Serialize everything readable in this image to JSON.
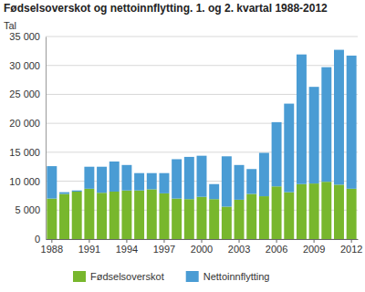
{
  "chart_data": {
    "type": "bar",
    "stacked": true,
    "grid": true,
    "legend": "bottom",
    "title": "Fødselsoverskot og nettoinnflytting. 1. og 2. kvartal 1988-2012",
    "y_label": "Tal",
    "categories": [
      "1988",
      null,
      null,
      "1991",
      null,
      null,
      "1994",
      null,
      null,
      "1997",
      null,
      null,
      "2000",
      null,
      null,
      "2003",
      null,
      null,
      "2006",
      null,
      null,
      "2009",
      null,
      null,
      "2012"
    ],
    "series": [
      {
        "name": "Fødselsoverskot",
        "color": "#78b72d",
        "values": [
          7000,
          7800,
          8200,
          8700,
          8000,
          8200,
          8400,
          8400,
          8600,
          7900,
          7000,
          6900,
          7300,
          6900,
          5600,
          6800,
          7800,
          7400,
          9100,
          8100,
          9500,
          9600,
          9900,
          9400,
          8700
        ]
      },
      {
        "name": "Nettoinnflytting",
        "color": "#4a9cd4",
        "values": [
          5600,
          300,
          200,
          3800,
          4500,
          5200,
          4400,
          3000,
          2800,
          3500,
          6800,
          7300,
          7100,
          2600,
          8700,
          6000,
          4300,
          7500,
          11100,
          15300,
          22400,
          16700,
          19800,
          23300,
          23000
        ]
      }
    ],
    "ylim": [
      0,
      35000
    ],
    "yticks": [
      0,
      {
        "value": 5000,
        "label": "5 000"
      },
      {
        "value": 10000,
        "label": "10 000"
      },
      {
        "value": 15000,
        "label": "15 000"
      },
      {
        "value": 20000,
        "label": "20 000"
      },
      {
        "value": 25000,
        "label": "25 000"
      },
      {
        "value": 30000,
        "label": "30 000"
      },
      {
        "value": 35000,
        "label": "35 000"
      }
    ]
  }
}
